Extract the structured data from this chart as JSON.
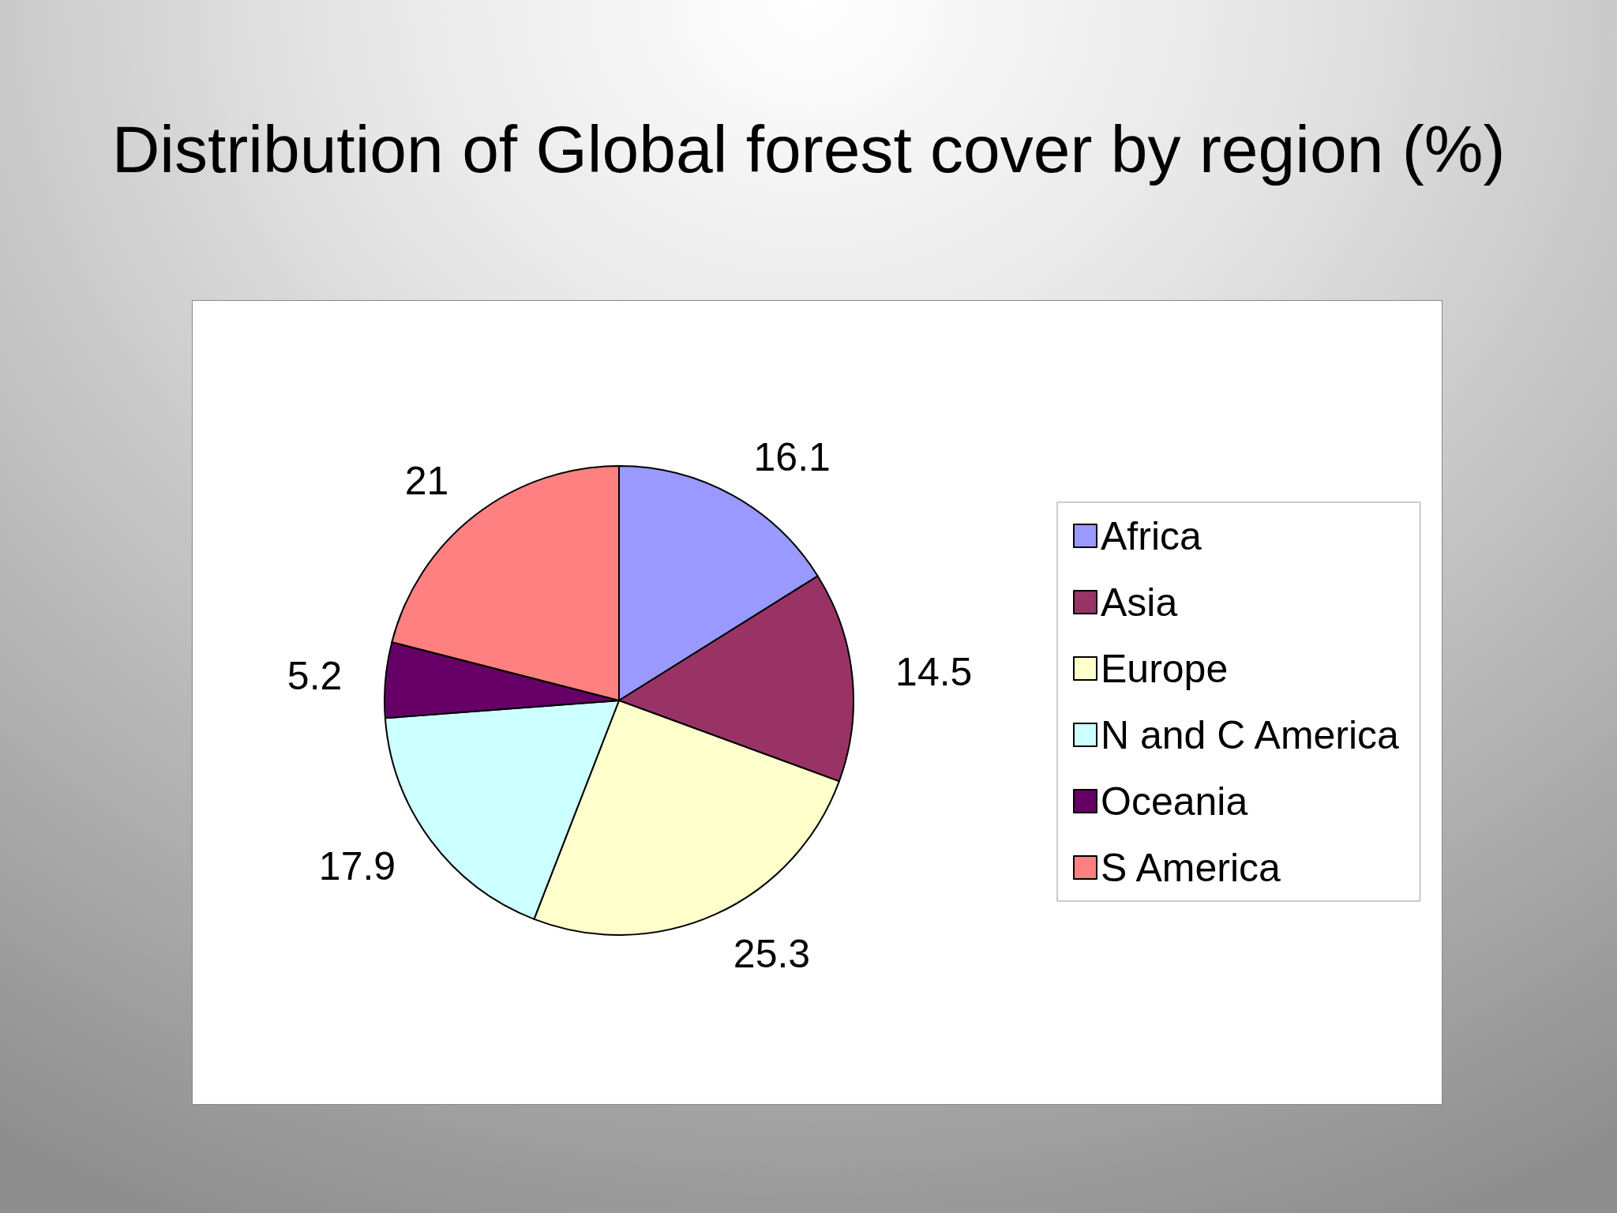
{
  "chart_data": {
    "type": "pie",
    "title": "Distribution of Global forest cover by region (%)",
    "categories": [
      "Africa",
      "Asia",
      "Europe",
      "N and C America",
      "Oceania",
      "S America"
    ],
    "values": [
      16.1,
      14.5,
      25.3,
      17.9,
      5.2,
      21
    ],
    "colors": [
      "#9999ff",
      "#993366",
      "#ffffcc",
      "#ccffff",
      "#660066",
      "#ff8080"
    ],
    "data_labels": true,
    "legend": "right"
  }
}
